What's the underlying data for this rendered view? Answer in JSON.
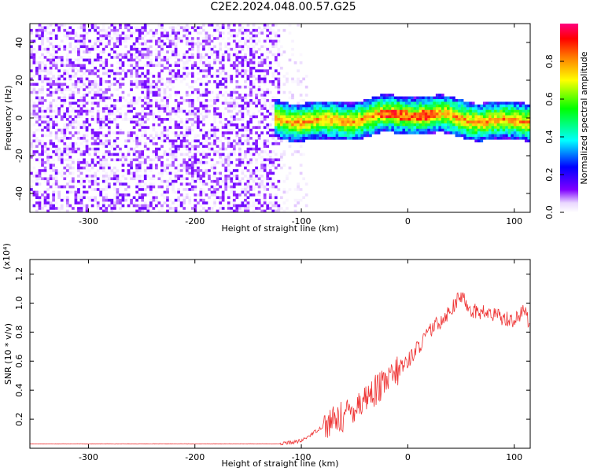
{
  "page": {
    "title": "C2E2.2024.048.00.57.G25"
  },
  "colors": {
    "background": "#ffffff",
    "axis": "#000000",
    "line": "#ff0000",
    "spectrogram_primary": "#7f00ff",
    "snr_line": "#ee3333"
  },
  "chart_data": [
    {
      "type": "heatmap",
      "title": "C2E2.2024.048.00.57.G25",
      "xlabel": "Height of straight line (km)",
      "ylabel": "Frequency (Hz)",
      "xlim": [
        -355,
        115
      ],
      "ylim": [
        -50,
        50
      ],
      "x_ticks": [
        -300,
        -200,
        -100,
        0,
        100
      ],
      "y_ticks": [
        -40,
        -20,
        0,
        20,
        40
      ],
      "colorbar": {
        "label": "Normalized spectral amplitude",
        "min": 0.0,
        "max": 1.0,
        "ticks": [
          0.0,
          0.2,
          0.4,
          0.6,
          0.8
        ],
        "colormap": "gist_rainbow-like"
      },
      "regions": [
        {
          "name": "noise",
          "x_range": [
            -355,
            -120
          ],
          "y_range": [
            -50,
            50
          ],
          "amplitude_range": [
            0.0,
            0.15
          ]
        },
        {
          "name": "tail",
          "x_range": [
            -120,
            -95
          ],
          "y_range": [
            -50,
            50
          ],
          "amplitude_range": [
            0.0,
            0.08
          ]
        },
        {
          "name": "ridge",
          "x_range": [
            -125,
            115
          ],
          "center_frequency": 0.0,
          "width_hz": 10,
          "amplitude_range": [
            0.3,
            1.0
          ]
        }
      ]
    },
    {
      "type": "line",
      "xlabel": "Height of straight line (km)",
      "ylabel": "SNR (10 * v/v)",
      "xlim": [
        -355,
        115
      ],
      "ylim": [
        0.0,
        1.3
      ],
      "x_ticks": [
        -300,
        -200,
        -100,
        0,
        100
      ],
      "y_ticks": [
        0.2,
        0.4,
        0.6,
        0.8,
        1.0,
        1.2
      ],
      "y_multiplier": "(x10⁴)",
      "series": [
        {
          "color": "#ee3333",
          "values": [
            [
              -355,
              0.03
            ],
            [
              -300,
              0.03
            ],
            [
              -250,
              0.03
            ],
            [
              -200,
              0.03
            ],
            [
              -150,
              0.03
            ],
            [
              -120,
              0.03
            ],
            [
              -100,
              0.05
            ],
            [
              -80,
              0.15
            ],
            [
              -60,
              0.22
            ],
            [
              -40,
              0.35
            ],
            [
              -20,
              0.45
            ],
            [
              0,
              0.6
            ],
            [
              20,
              0.8
            ],
            [
              40,
              0.95
            ],
            [
              50,
              1.05
            ],
            [
              60,
              0.95
            ],
            [
              80,
              0.92
            ],
            [
              100,
              0.88
            ],
            [
              110,
              0.95
            ],
            [
              115,
              0.85
            ]
          ]
        }
      ]
    }
  ]
}
